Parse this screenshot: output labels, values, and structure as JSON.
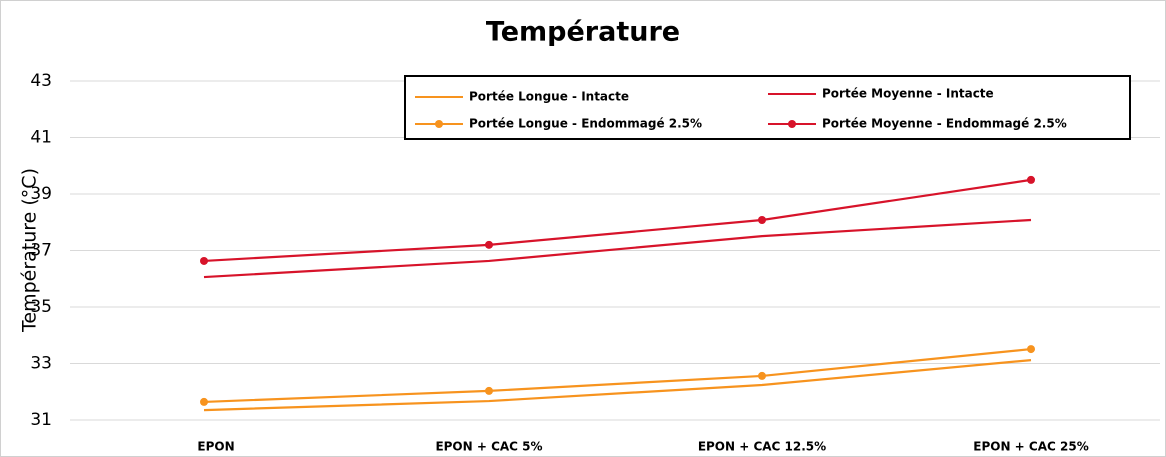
{
  "chart_data": {
    "type": "line",
    "title": "Température",
    "ylabel": "Température (°C)",
    "categories": [
      "EPON",
      "EPON + CAC 5%",
      "EPON + CAC 12.5%",
      "EPON + CAC 25%"
    ],
    "series": [
      {
        "name": "Portée Longue - Intacte",
        "color": "#f7931e",
        "markers": false,
        "values": [
          31.35,
          31.67,
          32.24,
          33.12
        ]
      },
      {
        "name": "Portée Moyenne - Intacte",
        "color": "#d7132a",
        "markers": false,
        "values": [
          36.06,
          36.63,
          37.51,
          38.08
        ]
      },
      {
        "name": "Portée Longue - Endommagé 2.5%",
        "color": "#f7931e",
        "markers": true,
        "values": [
          31.64,
          32.03,
          32.56,
          33.51
        ]
      },
      {
        "name": "Portée Moyenne - Endommagé 2.5%",
        "color": "#d7132a",
        "markers": true,
        "values": [
          36.63,
          37.2,
          38.08,
          39.5
        ]
      }
    ],
    "ylim": [
      31,
      43
    ],
    "yticks": [
      31,
      33,
      35,
      37,
      39,
      41,
      43
    ],
    "grid": true,
    "legend": "top-right"
  }
}
